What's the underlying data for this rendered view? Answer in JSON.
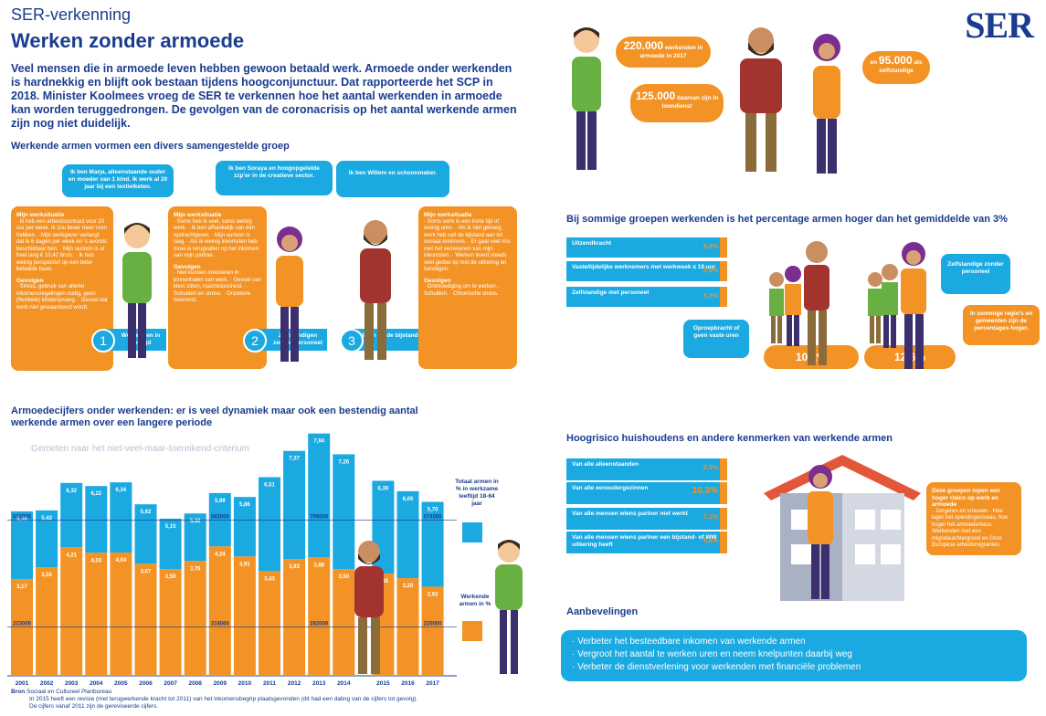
{
  "header": {
    "subtitle": "SER-verkenning",
    "title": "Werken zonder armoede",
    "logo": "SER"
  },
  "intro": "Veel mensen die in armoede leven hebben gewoon betaald werk. Armoede onder werkenden is hardnekkig en blijft ook bestaan tijdens hoogconjunctuur. Dat rapporteerde het SCP in 2018. Minister Koolmees vroeg de SER te verkennen hoe het aantal werkenden in armoede kan worden teruggedrongen. De gevolgen van de coronacrisis op het aantal werkende armen zijn nog niet duidelijk.",
  "group_section": {
    "title": "Werkende armen vormen een divers samengestelde groep",
    "persons": [
      {
        "bubble": "Ik ben Marja, alleenstaande ouder en moeder van 1 kind. Ik werk al 20 jaar bij een textielketen.",
        "sit_title": "Mijn werksituatie",
        "sit_text": "· Ik heb een arbeidscontract voor 20 uur per week. Ik zou liever meer uren hebben. · Mijn werkgever verlangt dat ik 6 dagen per week en 's avonds beschikbaar ben. · Mijn uurloon is al heel lang € 10,42 bruto. · Ik heb weinig perspectief op een beter betaalde baan.",
        "gev_title": "Gevolgen",
        "gev_text": "· Stress, gebruik van allerlei inkomensregelingen nodig, geen (flexibele) kinderopvang. · Gevoel dat werk niet gewaardeerd wordt.",
        "badge": "1",
        "label": "Werkenden in deeltijd"
      },
      {
        "bubble": "Ik ben Soraya en hoogopgeleide zzp'er in de creatieve sector.",
        "sit_title": "Mijn werksituatie",
        "sit_text": "· Soms heb ik veel, soms weinig werk. · Ik ben afhankelijk van één opdrachtgever. · Mijn uurloon is laag. · Als ik weinig inkomsten heb moet ik terugvallen op het inkomen van mijn partner.",
        "gev_title": "Gevolgen",
        "gev_text": "· Niet kunnen investeren in binnenhalen van werk. · Gevoel van klem zitten, machteloosheid. · Schulden en stress. · Onzekere toekomst.",
        "badge": "2",
        "label": "Zelfstandigen zonder personeel"
      },
      {
        "bubble": "Ik ben Willem en schoonmaker.",
        "sit_title": "Mijn werksituatie",
        "sit_text": "· Soms werk ik een korte tijd of weinig uren. · Als ik niet genoeg werk heb valt de bijstand aan tot sociaal minimum. · Er gaat veel mis met het verrekenen van mijn inkomsten. · Werken levert steeds veel gedoe op met de uitkering en toeslagen.",
        "gev_title": "Gevolgen",
        "gev_text": "· Ontmoediging om te werken. · Schulden. · Chronische stress.",
        "badge": "3",
        "label": "In en uit de bijstand"
      }
    ]
  },
  "stats_top": [
    {
      "value": "220.000",
      "text": "werkenden in armoede in 2017"
    },
    {
      "value": "125.000",
      "text": "daarvan zijn in loondienst"
    },
    {
      "value": "95.000",
      "text": "zelfstandige",
      "prefix": "en",
      "suffix": "als"
    }
  ],
  "chart_data": {
    "type": "bar",
    "title": "Armoedecijfers onder werkenden: er is veel dynamiek maar ook een bestendig aantal werkende armen over een langere periode",
    "watermark": "Gemeten naar het niet-veel-maar-toereikend-criterium",
    "categories": [
      "2001",
      "2002",
      "2003",
      "2004",
      "2005",
      "2006",
      "2007",
      "2008",
      "2009",
      "2010",
      "2011",
      "2012",
      "2013",
      "2014",
      "2015",
      "2016",
      "2017"
    ],
    "series": [
      {
        "name": "Totaal armen in % in werkzame leeftijd 18-64 jaar",
        "values": [
          5.39,
          5.42,
          6.32,
          6.22,
          6.34,
          5.62,
          5.15,
          5.32,
          5.99,
          5.86,
          6.51,
          7.37,
          7.94,
          7.26,
          6.39,
          6.05,
          5.7
        ],
        "labels": [
          "5,39",
          "5,42",
          "6,32",
          "6,22",
          "6,34",
          "5,62",
          "5,15",
          "5,32",
          "5,99",
          "5,86",
          "6,51",
          "7,37",
          "7,94",
          "7,26",
          "6,39",
          "6,05",
          "5,70"
        ]
      },
      {
        "name": "Werkende armen in %",
        "values": [
          3.17,
          3.56,
          4.21,
          4.03,
          4.04,
          3.67,
          3.5,
          3.76,
          4.24,
          3.91,
          3.43,
          3.83,
          3.88,
          3.5,
          3.35,
          3.2,
          2.92
        ],
        "labels": [
          "3,17",
          "3,56",
          "4,21",
          "4,03",
          "4,04",
          "3,67",
          "3,50",
          "3,76",
          "4,24",
          "3,91",
          "3,43",
          "3,83",
          "3,88",
          "3,50",
          "3,35",
          "3,20",
          "2,92"
        ]
      }
    ],
    "annotations_top": [
      {
        "text": "503000"
      },
      {
        "text": "592000"
      },
      {
        "text": "799000"
      },
      {
        "text": "574000"
      }
    ],
    "annotations_bottom": [
      {
        "text": "223000"
      },
      {
        "text": "316000"
      },
      {
        "text": "282000"
      },
      {
        "text": "220000"
      }
    ],
    "legend": {
      "total": "Totaal armen in % in werkzame leeftijd 18-64 jaar",
      "working": "Werkende armen in %"
    },
    "ylim": [
      0,
      8.2
    ]
  },
  "source": {
    "label": "Bron",
    "org": "Sociaal en Cultureel Planbureau",
    "note1": "In 2015 heeft een revisie (met terugwerkende kracht tot 2011) van het inkomensbegrip plaatsgevonden (dit had een daling van de cijfers tot gevolg).",
    "note2": "De cijfers vanaf 2011 zijn de gereviseerde cijfers."
  },
  "groups_section": {
    "title": "Bij sommige groepen werkenden is het percentage armen hoger dan het gemiddelde van 3%",
    "rows": [
      {
        "label": "Uitzendkracht",
        "value": "5,4%"
      },
      {
        "label": "Vaste/tijdelijke werknemers met werkweek ≤ 19 uur",
        "value": "6,9%"
      },
      {
        "label": "Zelfstandige met personeel",
        "value": "8,3%"
      }
    ],
    "bubble_left": "Oproepkracht of geen vaste uren",
    "pct_left": "10,2%",
    "bubble_right": "Zelfstandige zonder personeel",
    "pct_right": "12,6%",
    "bubble_region": "In sommige regio's en gemeenten zijn de percentages hoger."
  },
  "households_section": {
    "title": "Hoogrisico huishoudens en andere kenmerken van werkende armen",
    "rows": [
      {
        "label": "Van alle alleenstaanden",
        "value": "8,5%"
      },
      {
        "label": "Van alle eenoudergezinnen",
        "value": "10,3%"
      },
      {
        "label": "Van alle mensen wiens partner niet werkt",
        "value": "7,1%"
      },
      {
        "label": "Van alle mensen wiens partner een bijstand- of WW uitkering heeft",
        "value": "6,6%"
      }
    ],
    "box_title": "Deze groepen lopen een hoger risico op werk en armoede",
    "box_items": "· Jongeren en vrouwen · Hoe lager het opleidingsniveau, hoe hoger het armoederisico. · Werkenden met een migratieachtergrond en Oost-Europese arbeidsmigranten."
  },
  "recommendations": {
    "title": "Aanbevelingen",
    "items": [
      "Verbeter het besteedbare inkomen van werkende armen",
      "Vergroot het aantal te werken uren en neem knelpunten daarbij weg",
      "Verbeter de dienstverlening voor werkenden met financiële problemen"
    ]
  }
}
